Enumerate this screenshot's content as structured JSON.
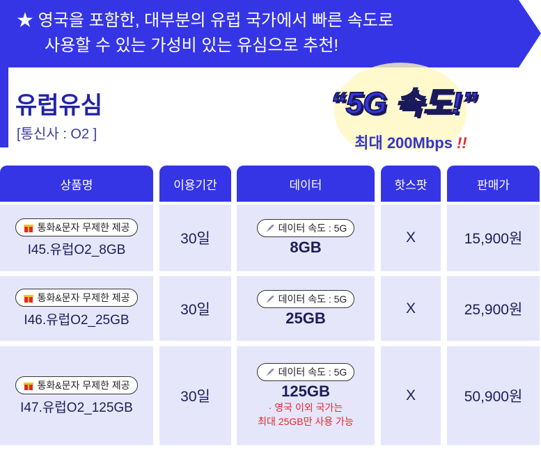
{
  "header": {
    "banner_lines": [
      "★ 영국을 포함한, 대부분의 유럽 국가에서 빠른 속도로",
      "사용할 수 있는 가성비 있는 유심으로 추천!"
    ]
  },
  "product": {
    "name": "유럽유심",
    "carrier": "[통신사 : O2 ]"
  },
  "badge": {
    "title": "“5G 속도!”",
    "subtitle": "최대 200Mbps",
    "emphasis": "!!"
  },
  "table": {
    "columns": [
      "상품명",
      "이용기간",
      "데이터",
      "핫스팟",
      "판매가"
    ],
    "rows": [
      {
        "tag": "통화&문자 무제한 제공",
        "name": "I45.유럽O2_8GB",
        "period": "30일",
        "data_tag": "데이터 속도 : 5G",
        "data": "8GB",
        "hotspot": "X",
        "price": "15,900원"
      },
      {
        "tag": "통화&문자 무제한 제공",
        "name": "I46.유럽O2_25GB",
        "period": "30일",
        "data_tag": "데이터 속도 : 5G",
        "data": "25GB",
        "hotspot": "X",
        "price": "25,900원"
      },
      {
        "tag": "통화&문자 무제한 제공",
        "name": "I47.유럽O2_125GB",
        "period": "30일",
        "data_tag": "데이터 속도 : 5G",
        "data": "125GB",
        "note": [
          "· 영국 이외 국가는",
          "최대 25GB만 사용 가능"
        ],
        "hotspot": "X",
        "price": "50,900원"
      }
    ]
  }
}
